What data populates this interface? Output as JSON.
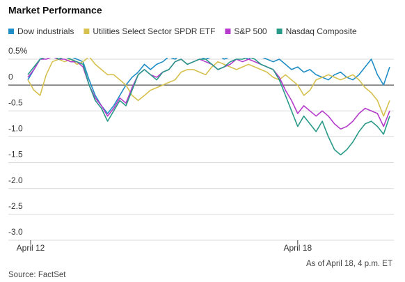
{
  "chart_data": {
    "type": "line",
    "title": "Market Performance",
    "note": "As of April 18, 4 p.m. ET",
    "source": "Source: FactSet",
    "categories": [
      "April 12",
      null,
      null,
      null,
      null,
      null,
      null,
      null,
      null,
      null,
      null,
      null,
      null,
      null,
      null,
      null,
      null,
      null,
      null,
      null,
      null,
      null,
      null,
      null,
      null,
      null,
      null,
      null,
      null,
      null,
      null,
      null,
      null,
      null,
      null,
      null,
      null,
      null,
      null,
      null,
      null,
      null,
      null,
      null,
      "April 18",
      null,
      null,
      null,
      null,
      null,
      null,
      null,
      null,
      null,
      null,
      null,
      null,
      null,
      null,
      null
    ],
    "ylim": [
      -3,
      0.5
    ],
    "yticks": [
      {
        "value": 0.5,
        "label": "0.5%"
      },
      0,
      -0.5,
      {
        "value": -1,
        "label": "-1.0"
      },
      -1.5,
      {
        "value": -2,
        "label": "-2.0"
      },
      -2.5,
      {
        "value": -3,
        "label": "-3.0"
      }
    ],
    "grid": true,
    "series": [
      {
        "name": "Dow industrials",
        "color": "#1f8dc6",
        "values": [
          0.1,
          0.3,
          0.5,
          0.55,
          0.6,
          0.55,
          0.6,
          0.55,
          0.5,
          0.45,
          0.1,
          -0.2,
          -0.4,
          -0.55,
          -0.4,
          -0.2,
          0.0,
          0.15,
          0.25,
          0.4,
          0.3,
          0.4,
          0.45,
          0.55,
          0.5,
          0.6,
          0.55,
          0.6,
          0.55,
          0.5,
          0.55,
          0.6,
          0.5,
          0.55,
          0.6,
          0.55,
          0.5,
          0.6,
          0.55,
          0.5,
          0.45,
          0.5,
          0.4,
          0.3,
          0.35,
          0.25,
          0.3,
          0.2,
          0.15,
          0.1,
          0.2,
          0.25,
          0.15,
          0.1,
          0.2,
          0.35,
          0.5,
          0.2,
          0.0,
          0.35
        ]
      },
      {
        "name": "Utilities Select Sector SPDR ETF",
        "color": "#d6c04e",
        "values": [
          0.1,
          -0.1,
          -0.2,
          0.2,
          0.45,
          0.5,
          0.45,
          0.5,
          0.4,
          0.45,
          0.55,
          0.4,
          0.3,
          0.2,
          0.2,
          0.1,
          0.0,
          -0.2,
          -0.3,
          -0.2,
          -0.1,
          -0.05,
          0.0,
          0.05,
          0.1,
          0.25,
          0.3,
          0.3,
          0.25,
          0.2,
          0.35,
          0.45,
          0.4,
          0.35,
          0.3,
          0.35,
          0.4,
          0.35,
          0.3,
          0.25,
          0.15,
          0.1,
          0.2,
          0.1,
          0.0,
          -0.2,
          -0.1,
          0.1,
          0.15,
          0.2,
          0.15,
          0.1,
          0.15,
          0.2,
          0.1,
          -0.05,
          -0.15,
          -0.3,
          -0.6,
          -0.3
        ]
      },
      {
        "name": "S&P 500",
        "color": "#b43bcb",
        "values": [
          0.15,
          0.3,
          0.5,
          0.5,
          0.55,
          0.5,
          0.5,
          0.45,
          0.45,
          0.35,
          0.0,
          -0.25,
          -0.4,
          -0.6,
          -0.45,
          -0.25,
          -0.35,
          -0.05,
          0.2,
          0.3,
          0.2,
          0.15,
          0.25,
          0.3,
          0.45,
          0.5,
          0.4,
          0.45,
          0.5,
          0.45,
          0.4,
          0.3,
          0.35,
          0.4,
          0.5,
          0.45,
          0.5,
          0.45,
          0.4,
          0.35,
          0.3,
          0.15,
          -0.1,
          -0.3,
          -0.55,
          -0.4,
          -0.5,
          -0.6,
          -0.5,
          -0.6,
          -0.75,
          -0.85,
          -0.8,
          -0.7,
          -0.55,
          -0.45,
          -0.5,
          -0.55,
          -0.8,
          -0.5
        ]
      },
      {
        "name": "Nasdaq Composite",
        "color": "#2a9a88",
        "values": [
          0.2,
          0.35,
          0.5,
          0.55,
          0.6,
          0.5,
          0.55,
          0.5,
          0.45,
          0.4,
          0.0,
          -0.3,
          -0.45,
          -0.7,
          -0.5,
          -0.3,
          -0.4,
          -0.1,
          0.2,
          0.3,
          0.2,
          0.1,
          0.25,
          0.3,
          0.45,
          0.5,
          0.4,
          0.45,
          0.5,
          0.5,
          0.4,
          0.3,
          0.35,
          0.45,
          0.5,
          0.5,
          0.55,
          0.5,
          0.4,
          0.35,
          0.3,
          0.1,
          -0.2,
          -0.5,
          -0.8,
          -0.6,
          -0.75,
          -0.9,
          -0.7,
          -1.0,
          -1.25,
          -1.35,
          -1.25,
          -1.1,
          -0.9,
          -0.75,
          -0.7,
          -0.8,
          -0.95,
          -0.6
        ]
      }
    ]
  }
}
